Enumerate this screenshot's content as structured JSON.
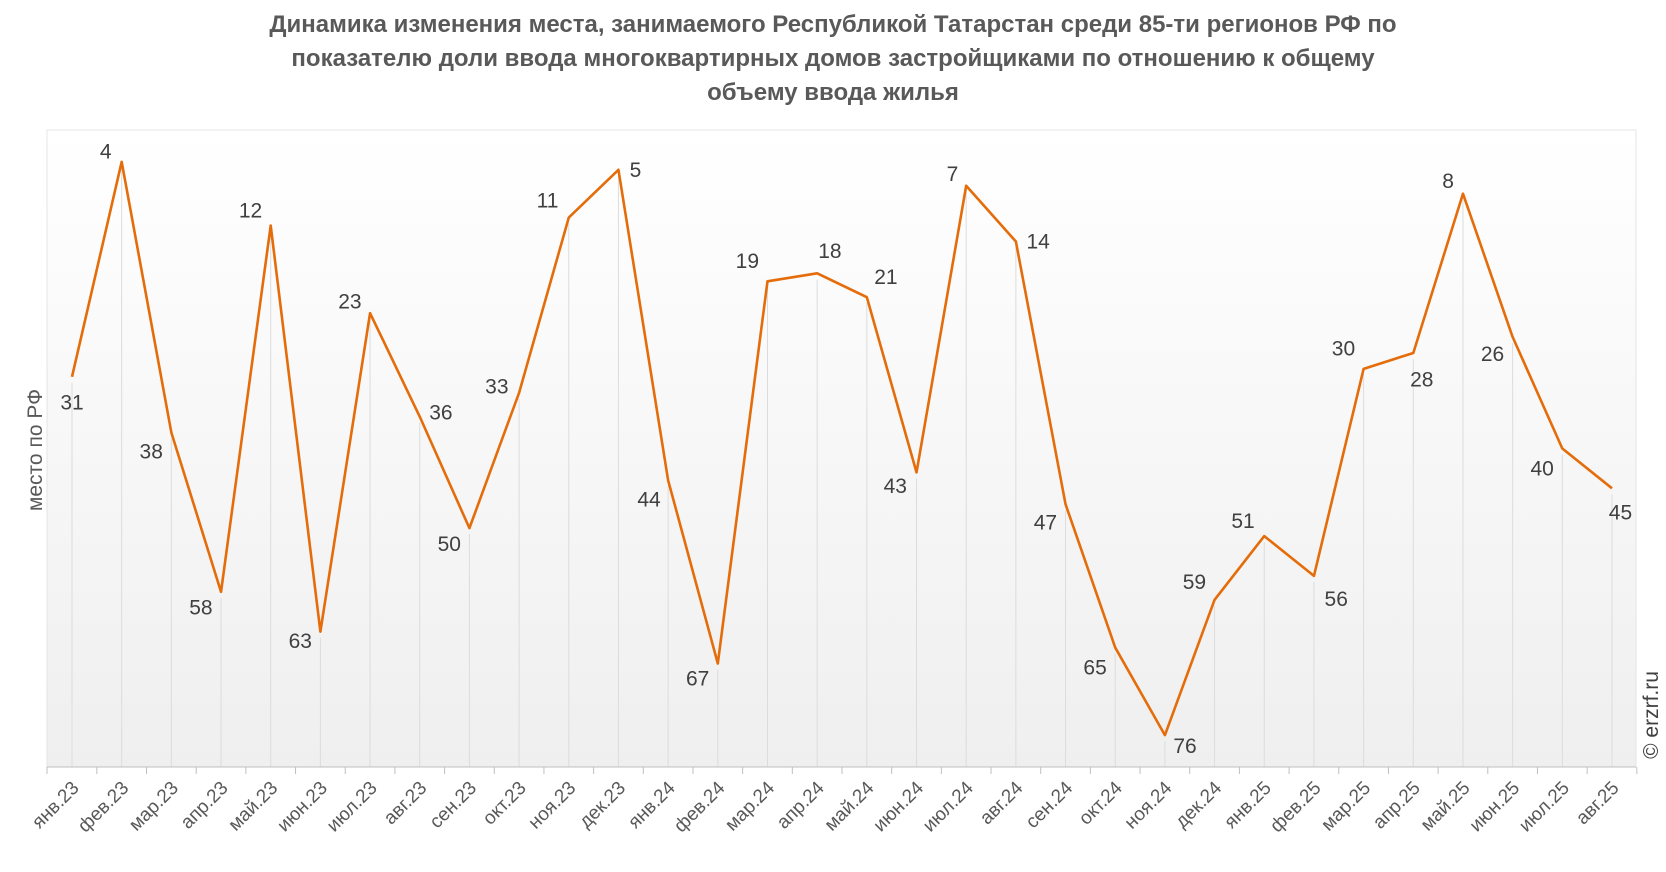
{
  "chart_data": {
    "type": "line",
    "title": [
      "Динамика изменения места, занимаемого Республикой Татарстан среди 85-ти регионов РФ по",
      "показателю доли ввода многоквартирных домов застройщиками по отношению к общему",
      "объему ввода жилья"
    ],
    "ylabel": "место по РФ",
    "xlabel": "",
    "ylim": [
      0,
      80
    ],
    "y_inverted": true,
    "grid": "vertical",
    "categories": [
      "янв.23",
      "фев.23",
      "мар.23",
      "апр.23",
      "май.23",
      "июн.23",
      "июл.23",
      "авг.23",
      "сен.23",
      "окт.23",
      "ноя.23",
      "дек.23",
      "янв.24",
      "фев.24",
      "мар.24",
      "апр.24",
      "май.24",
      "июн.24",
      "июл.24",
      "авг.24",
      "сен.24",
      "окт.24",
      "ноя.24",
      "дек.24",
      "янв.25",
      "фев.25",
      "мар.25",
      "апр.25",
      "май.25",
      "июн.25",
      "июл.25",
      "авг.25"
    ],
    "values": [
      31,
      4,
      38,
      58,
      12,
      63,
      23,
      36,
      50,
      33,
      11,
      5,
      44,
      67,
      19,
      18,
      21,
      43,
      7,
      14,
      47,
      65,
      76,
      59,
      51,
      56,
      30,
      28,
      8,
      26,
      40,
      45
    ],
    "line_color": "#e46c0a"
  },
  "watermark": "© erzrf.ru"
}
